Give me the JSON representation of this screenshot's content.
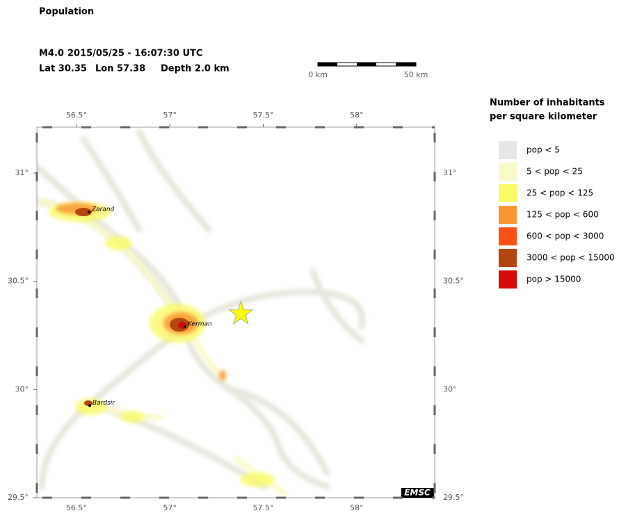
{
  "title": "Population",
  "event": {
    "line1": [
      "M4.0",
      "2015/05/25 - 16:07:30 UTC"
    ],
    "line2": [
      "Lat 30.35",
      "Lon 57.38",
      "Depth 2.0 km"
    ]
  },
  "scale_bar": {
    "start": "0 km",
    "end": "50 km"
  },
  "legend": {
    "title": [
      "Number of inhabitants",
      "per square kilometer"
    ],
    "items": [
      {
        "label": "pop < 5",
        "color": "#e6e6e6"
      },
      {
        "label": "5 < pop < 25",
        "color": "#fafac8"
      },
      {
        "label": "25 < pop < 125",
        "color": "#fafa64"
      },
      {
        "label": "125 < pop < 600",
        "color": "#fa9632"
      },
      {
        "label": "600 < pop < 3000",
        "color": "#fa5014"
      },
      {
        "label": "3000 < pop < 15000",
        "color": "#b4460f"
      },
      {
        "label": "pop > 15000",
        "color": "#d20a0a"
      }
    ]
  },
  "map": {
    "xlim": [
      56.288,
      58.418
    ],
    "ylim": [
      29.5,
      31.212
    ],
    "xticks": [
      {
        "value": 56.5,
        "label": "56.5°"
      },
      {
        "value": 57,
        "label": "57°"
      },
      {
        "value": 57.5,
        "label": "57.5°"
      },
      {
        "value": 58,
        "label": "58°"
      }
    ],
    "yticks": [
      {
        "value": 29.5,
        "label": "29.5°"
      },
      {
        "value": 30,
        "label": "30°"
      },
      {
        "value": 30.5,
        "label": "30.5°"
      },
      {
        "value": 31,
        "label": "31°"
      }
    ],
    "epicenter": {
      "lon": 57.38,
      "lat": 30.35
    },
    "cities": [
      {
        "name": "Zarand",
        "lon": 56.567,
        "lat": 30.82
      },
      {
        "name": "Kerman",
        "lon": 57.081,
        "lat": 30.29
      },
      {
        "name": "Bardsir",
        "lon": 56.571,
        "lat": 29.926
      }
    ],
    "credit": "EMSC"
  }
}
